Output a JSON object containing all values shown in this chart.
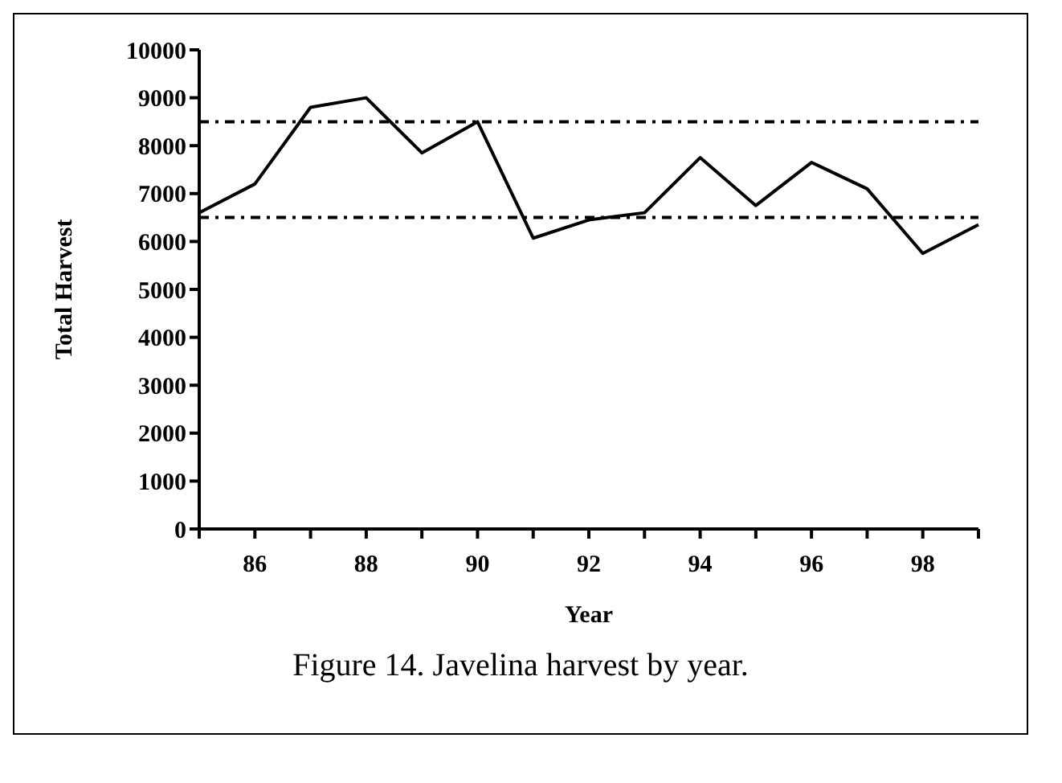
{
  "chart_data": {
    "type": "line",
    "xlabel": "Year",
    "ylabel": "Total Harvest",
    "annotations": [
      "Figure 14. Javelina harvest by year."
    ],
    "categories": [
      null,
      "86",
      null,
      "88",
      null,
      "90",
      null,
      "92",
      null,
      "94",
      null,
      "96",
      null,
      "98",
      null
    ],
    "series": [
      {
        "color": "#000000",
        "values": [
          6600,
          7200,
          8800,
          9000,
          7850,
          8500,
          6070,
          6450,
          6600,
          7750,
          6750,
          7650,
          7100,
          5750,
          6350
        ]
      }
    ],
    "ylim": [
      0,
      10000
    ],
    "yticks": [
      0,
      1000,
      2000,
      3000,
      4000,
      5000,
      6000,
      7000,
      8000,
      9000,
      10000
    ],
    "ref_lines": [
      {
        "axis": "y",
        "value": 8500,
        "color": "#000000",
        "line_style": "dashed"
      },
      {
        "axis": "y",
        "value": 6500,
        "color": "#000000",
        "line_style": "dashed"
      }
    ],
    "marker": "none",
    "grid": false,
    "legend": false
  }
}
